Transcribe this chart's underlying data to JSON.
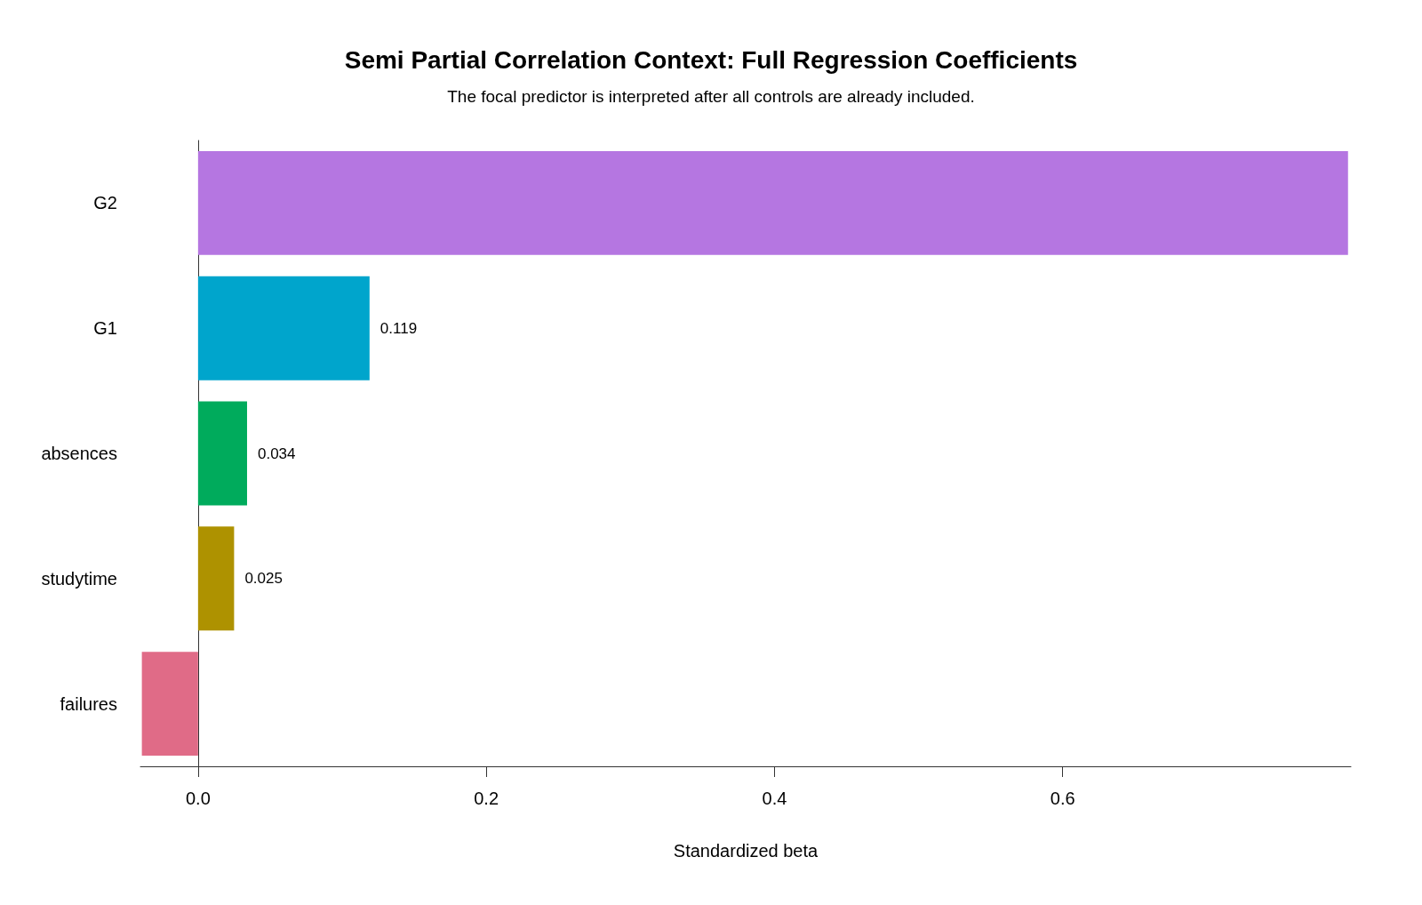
{
  "chart_data": {
    "type": "bar",
    "orientation": "horizontal",
    "title": "Semi Partial Correlation Context: Full Regression Coefficients",
    "subtitle": "The focal predictor is interpreted after all controls are already included.",
    "xlabel": "Standardized beta",
    "categories": [
      "G2",
      "G1",
      "absences",
      "studytime",
      "failures"
    ],
    "values": [
      0.798,
      0.119,
      0.034,
      0.025,
      -0.039
    ],
    "value_labels": [
      null,
      "0.119",
      "0.034",
      "0.025",
      null
    ],
    "colors": [
      "#b576e1",
      "#00a5cc",
      "#00ab5c",
      "#ae9200",
      "#e06b87"
    ],
    "xlim": [
      -0.04,
      0.8
    ],
    "xticks": [
      {
        "value": 0,
        "label": "0.0"
      },
      {
        "value": 0.2,
        "label": "0.2"
      },
      {
        "value": 0.4,
        "label": "0.4"
      },
      {
        "value": 0.6,
        "label": "0.6"
      }
    ]
  }
}
